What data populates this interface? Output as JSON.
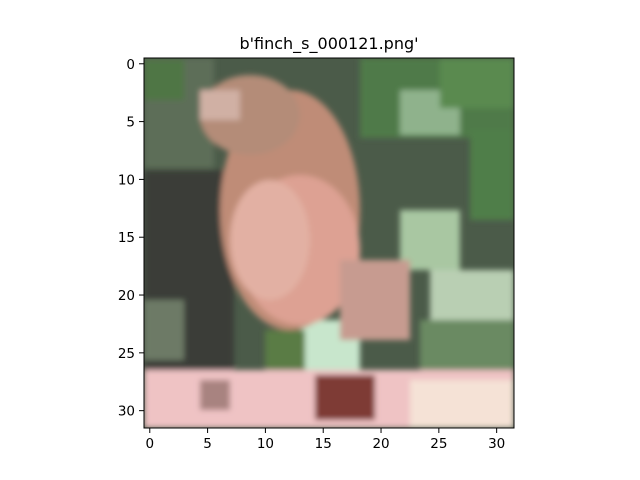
{
  "figure": {
    "title": "b'finch_s_000121.png'"
  },
  "image": {
    "subject": "finch perched on a branch, low-resolution 32x32 pixelated photo",
    "grid_size": 32,
    "palette": {
      "background_green": "#4f7a4a",
      "background_dark": "#3b3f3a",
      "leaf_light": "#9cc49a",
      "bird_body": "#c99580",
      "bird_breast": "#e3a89a",
      "bird_head": "#a9826e",
      "branch_pink": "#efbfbf",
      "branch_light": "#f6e4d8",
      "shadow_red": "#7a2e2a"
    }
  },
  "axes": {
    "x_ticks": [
      "0",
      "5",
      "10",
      "15",
      "20",
      "25",
      "30"
    ],
    "y_ticks": [
      "0",
      "5",
      "10",
      "15",
      "20",
      "25",
      "30"
    ],
    "xlim": [
      -0.5,
      31.5
    ],
    "ylim": [
      31.5,
      -0.5
    ]
  }
}
